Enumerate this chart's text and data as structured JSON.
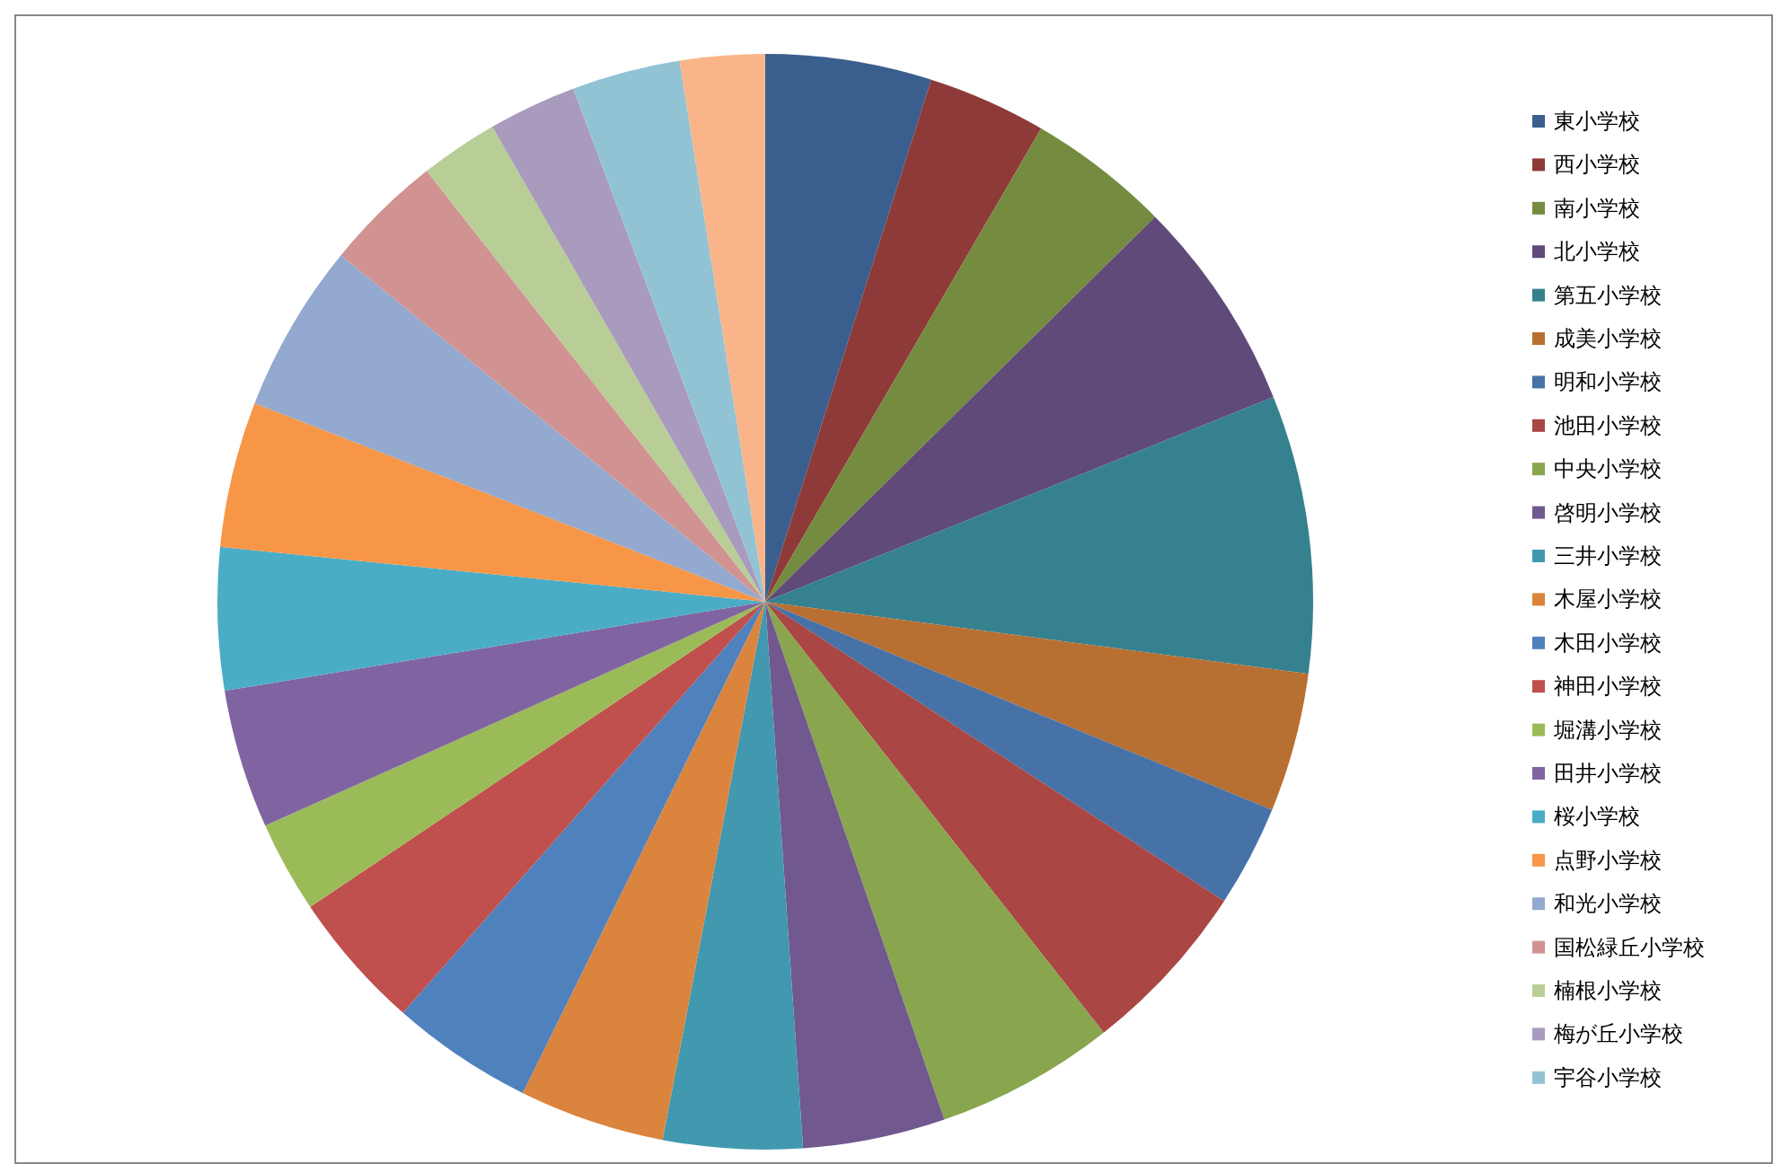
{
  "chart_data": {
    "type": "pie",
    "categories": [
      "東小学校",
      "西小学校",
      "南小学校",
      "北小学校",
      "第五小学校",
      "成美小学校",
      "明和小学校",
      "池田小学校",
      "中央小学校",
      "啓明小学校",
      "三井小学校",
      "木屋小学校",
      "木田小学校",
      "神田小学校",
      "堀溝小学校",
      "田井小学校",
      "桜小学校",
      "点野小学校",
      "和光小学校",
      "国松緑丘小学校",
      "楠根小学校",
      "梅が丘小学校",
      "宇谷小学校",
      null
    ],
    "values": [
      4.9,
      3.5,
      4.2,
      6.3,
      8.2,
      4.1,
      3.0,
      5.2,
      5.3,
      4.2,
      4.1,
      4.3,
      4.2,
      4.1,
      2.7,
      4.1,
      4.2,
      4.3,
      5.0,
      3.5,
      2.3,
      2.6,
      3.2,
      2.5
    ],
    "colors": [
      "#3a5f8e",
      "#8e3a38",
      "#758b3f",
      "#5f4a79",
      "#36818f",
      "#b86f32",
      "#4672a8",
      "#aa4643",
      "#89a54e",
      "#71588f",
      "#4198af",
      "#db843d",
      "#4f81bd",
      "#c0504d",
      "#9bbb59",
      "#8064a2",
      "#4bacc6",
      "#f79646",
      "#93a9cf",
      "#d19392",
      "#b9cd96",
      "#a99bbd",
      "#92c3d4",
      "#f9b589"
    ],
    "legend": "right"
  }
}
